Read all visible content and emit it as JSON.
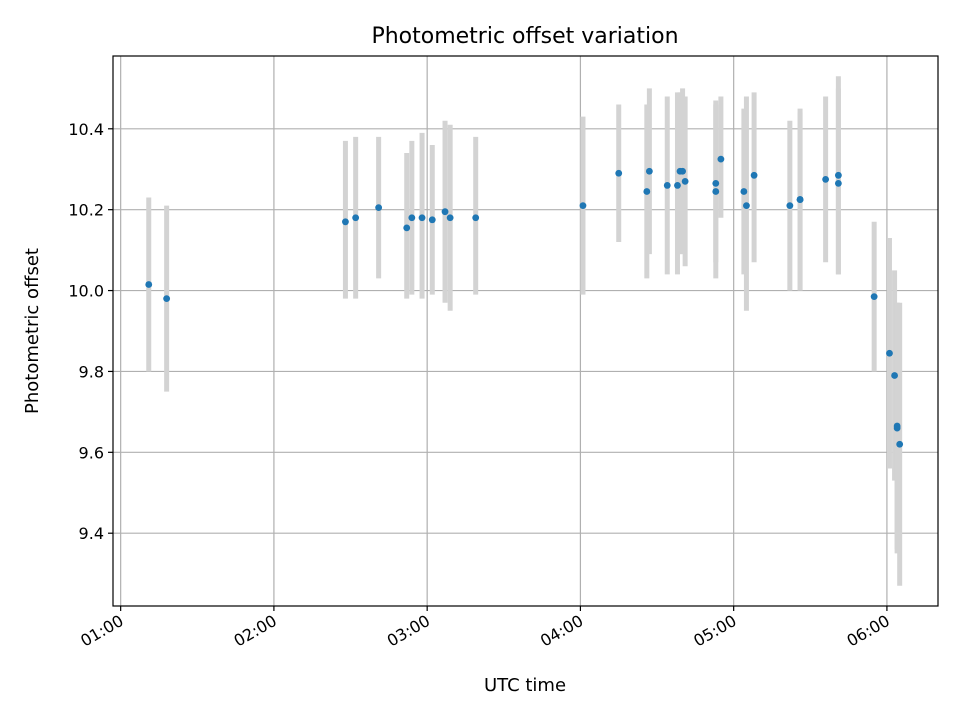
{
  "chart_data": {
    "type": "scatter",
    "title": "Photometric offset variation",
    "xlabel": "UTC time",
    "ylabel": "Photometric offset",
    "x_ticks": [
      "01:00",
      "02:00",
      "03:00",
      "04:00",
      "05:00",
      "06:00"
    ],
    "y_ticks": [
      "9.4",
      "9.6",
      "9.8",
      "10.0",
      "10.2",
      "10.4"
    ],
    "xlim": [
      "00:57",
      "06:20"
    ],
    "ylim": [
      9.22,
      10.58
    ],
    "grid": true,
    "marker_color": "#1f77b4",
    "errorbar_color": "#d3d3d3",
    "points": [
      {
        "t": "01:11",
        "y": 10.015,
        "lo": 9.8,
        "hi": 10.23
      },
      {
        "t": "01:18",
        "y": 9.98,
        "lo": 9.75,
        "hi": 10.21
      },
      {
        "t": "02:28",
        "y": 10.17,
        "lo": 9.98,
        "hi": 10.37
      },
      {
        "t": "02:32",
        "y": 10.18,
        "lo": 9.98,
        "hi": 10.38
      },
      {
        "t": "02:41",
        "y": 10.205,
        "lo": 10.03,
        "hi": 10.38
      },
      {
        "t": "02:52",
        "y": 10.155,
        "lo": 9.98,
        "hi": 10.34
      },
      {
        "t": "02:54",
        "y": 10.18,
        "lo": 9.99,
        "hi": 10.37
      },
      {
        "t": "02:58",
        "y": 10.18,
        "lo": 9.98,
        "hi": 10.39
      },
      {
        "t": "03:02",
        "y": 10.175,
        "lo": 9.99,
        "hi": 10.36
      },
      {
        "t": "03:07",
        "y": 10.195,
        "lo": 9.97,
        "hi": 10.42
      },
      {
        "t": "03:09",
        "y": 10.18,
        "lo": 9.95,
        "hi": 10.41
      },
      {
        "t": "03:19",
        "y": 10.18,
        "lo": 9.99,
        "hi": 10.38
      },
      {
        "t": "04:01",
        "y": 10.21,
        "lo": 9.99,
        "hi": 10.43
      },
      {
        "t": "04:15",
        "y": 10.29,
        "lo": 10.12,
        "hi": 10.46
      },
      {
        "t": "04:26",
        "y": 10.245,
        "lo": 10.03,
        "hi": 10.46
      },
      {
        "t": "04:27",
        "y": 10.295,
        "lo": 10.09,
        "hi": 10.5
      },
      {
        "t": "04:34",
        "y": 10.26,
        "lo": 10.04,
        "hi": 10.48
      },
      {
        "t": "04:38",
        "y": 10.26,
        "lo": 10.04,
        "hi": 10.49
      },
      {
        "t": "04:39",
        "y": 10.295,
        "lo": 10.09,
        "hi": 10.49
      },
      {
        "t": "04:40",
        "y": 10.295,
        "lo": 10.09,
        "hi": 10.5
      },
      {
        "t": "04:41",
        "y": 10.27,
        "lo": 10.06,
        "hi": 10.48
      },
      {
        "t": "04:53",
        "y": 10.265,
        "lo": 10.07,
        "hi": 10.46
      },
      {
        "t": "04:53",
        "y": 10.245,
        "lo": 10.03,
        "hi": 10.47
      },
      {
        "t": "04:55",
        "y": 10.325,
        "lo": 10.18,
        "hi": 10.48
      },
      {
        "t": "05:04",
        "y": 10.245,
        "lo": 10.04,
        "hi": 10.45
      },
      {
        "t": "05:05",
        "y": 10.21,
        "lo": 9.95,
        "hi": 10.48
      },
      {
        "t": "05:08",
        "y": 10.285,
        "lo": 10.07,
        "hi": 10.49
      },
      {
        "t": "05:22",
        "y": 10.21,
        "lo": 10.0,
        "hi": 10.42
      },
      {
        "t": "05:26",
        "y": 10.225,
        "lo": 10.0,
        "hi": 10.44
      },
      {
        "t": "05:26",
        "y": 10.225,
        "lo": 10.0,
        "hi": 10.45
      },
      {
        "t": "05:36",
        "y": 10.275,
        "lo": 10.07,
        "hi": 10.48
      },
      {
        "t": "05:41",
        "y": 10.285,
        "lo": 10.04,
        "hi": 10.53
      },
      {
        "t": "05:41",
        "y": 10.265,
        "lo": 10.04,
        "hi": 10.5
      },
      {
        "t": "05:55",
        "y": 9.985,
        "lo": 9.8,
        "hi": 10.17
      },
      {
        "t": "06:01",
        "y": 9.845,
        "lo": 9.56,
        "hi": 10.13
      },
      {
        "t": "06:03",
        "y": 9.79,
        "lo": 9.53,
        "hi": 10.05
      },
      {
        "t": "06:04",
        "y": 9.66,
        "lo": 9.35,
        "hi": 9.97
      },
      {
        "t": "06:04",
        "y": 9.665,
        "lo": 9.36,
        "hi": 9.97
      },
      {
        "t": "06:05",
        "y": 9.62,
        "lo": 9.27,
        "hi": 9.97
      }
    ]
  }
}
